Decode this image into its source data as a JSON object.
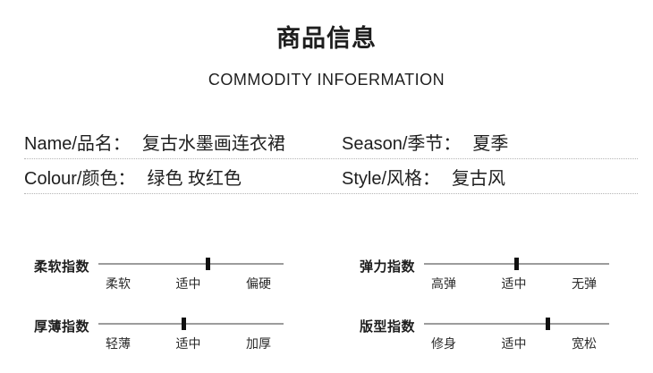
{
  "page": {
    "title": "商品信息",
    "subtitle": "COMMODITY INFOERMATION"
  },
  "info_table": {
    "rows": [
      {
        "cells": [
          {
            "label": "Name/品名：",
            "value": "复古水墨画连衣裙"
          },
          {
            "label": "Season/季节：",
            "value": "夏季"
          }
        ]
      },
      {
        "cells": [
          {
            "label": "Colour/颜色：",
            "value": "绿色 玫红色"
          },
          {
            "label": "Style/风格：",
            "value": "复古风"
          }
        ]
      }
    ]
  },
  "indices": [
    {
      "name": "柔软指数",
      "ticks": [
        "柔软",
        "适中",
        "偏硬"
      ],
      "marker_percent": 59
    },
    {
      "name": "弹力指数",
      "ticks": [
        "高弹",
        "适中",
        "无弹"
      ],
      "marker_percent": 50
    },
    {
      "name": "厚薄指数",
      "ticks": [
        "轻薄",
        "适中",
        "加厚"
      ],
      "marker_percent": 46
    },
    {
      "name": "版型指数",
      "ticks": [
        "修身",
        "适中",
        "宽松"
      ],
      "marker_percent": 67
    }
  ],
  "colors": {
    "text": "#1e1e1e",
    "track": "#9c9c9c",
    "marker": "#101010",
    "divider": "#b5b5b5"
  }
}
